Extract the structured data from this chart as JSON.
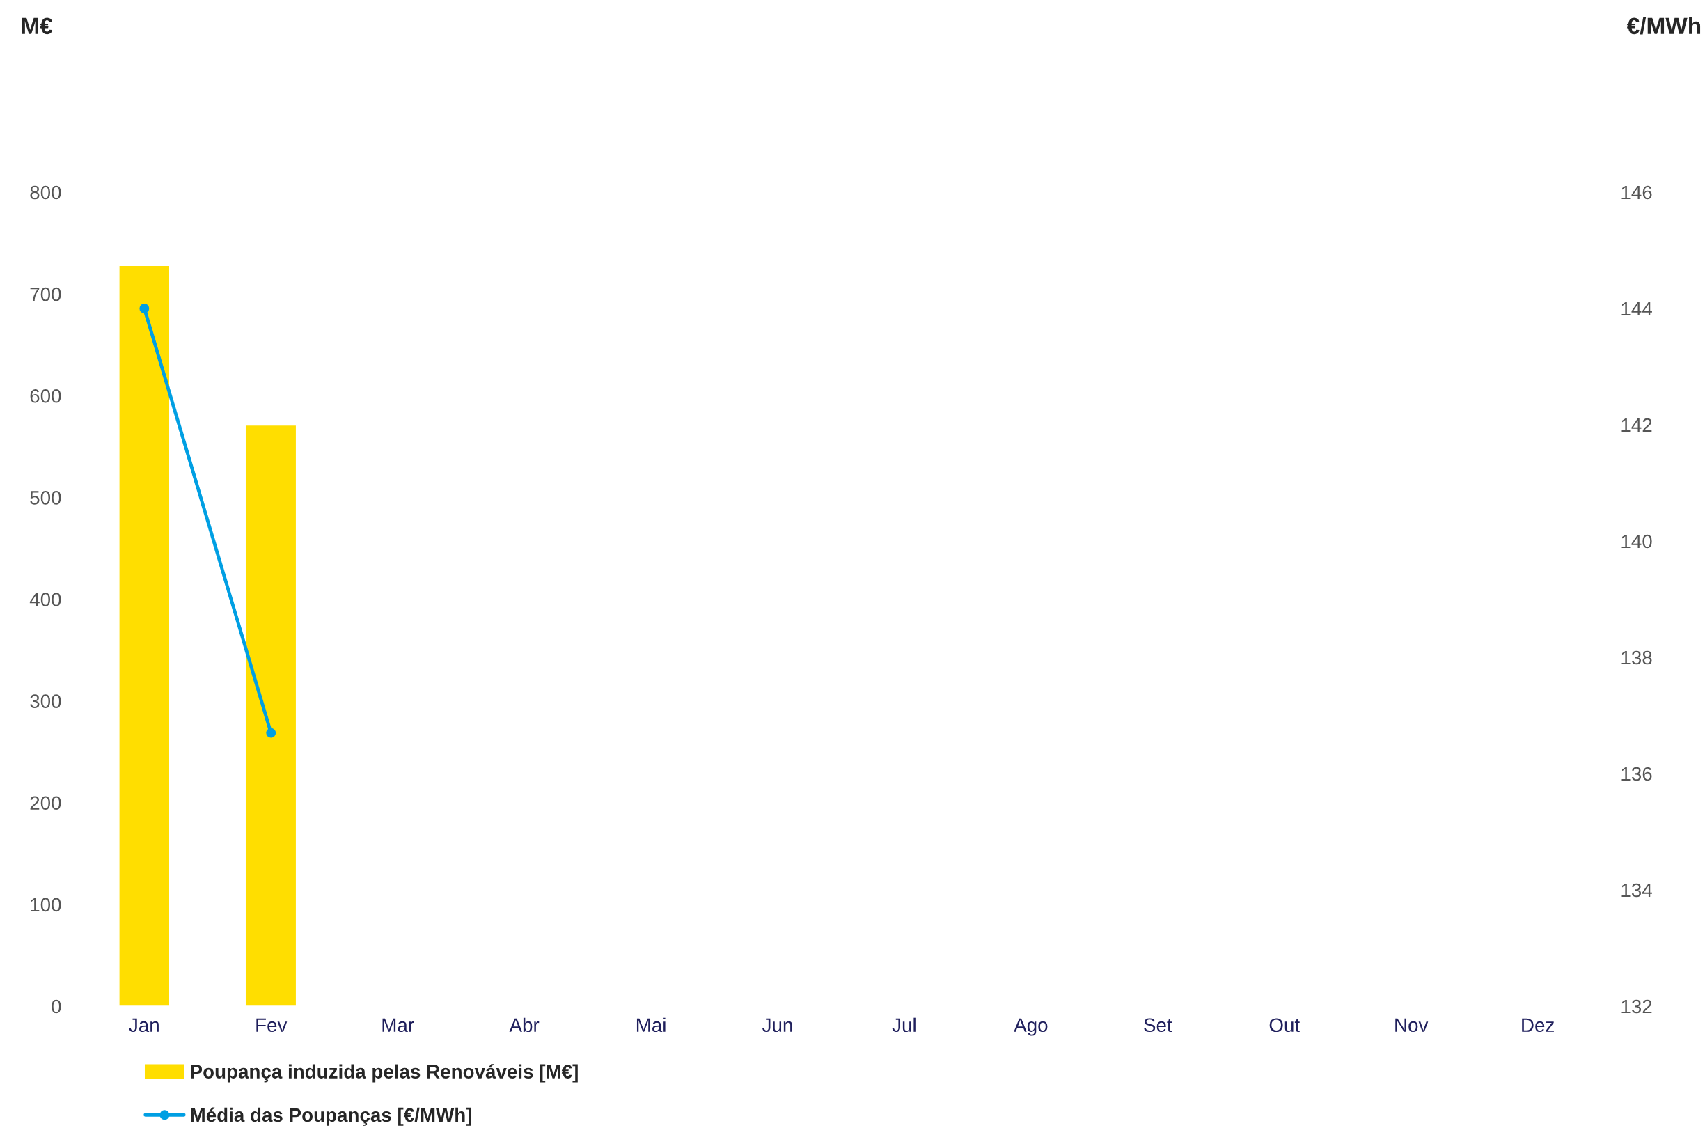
{
  "chart_data": {
    "type": "bar",
    "annotations": [
      "M€",
      "€/MWh"
    ],
    "categories": [
      "Jan",
      "Fev",
      "Mar",
      "Abr",
      "Mai",
      "Jun",
      "Jul",
      "Ago",
      "Set",
      "Out",
      "Nov",
      "Dez"
    ],
    "series": [
      {
        "name": "Poupança induzida pelas Renováveis [M€]",
        "color": "#ffde00",
        "values": [
          728,
          571,
          null,
          null,
          null,
          null,
          null,
          null,
          null,
          null,
          null,
          null
        ]
      },
      {
        "name": "Média das Poupanças [€/MWh]",
        "type": "line",
        "axis": "y2",
        "color": "#009fe3",
        "marker": "circle",
        "values": [
          144.0,
          136.7,
          null,
          null,
          null,
          null,
          null,
          null,
          null,
          null,
          null,
          null
        ]
      }
    ],
    "ylim": [
      0,
      800
    ],
    "yticks": [
      0,
      100,
      200,
      300,
      400,
      500,
      600,
      700,
      800
    ],
    "y2lim": [
      132,
      146
    ],
    "y2ticks": [
      132,
      134,
      136,
      138,
      140,
      142,
      144,
      146
    ],
    "grid": false,
    "legend": "bottom left"
  }
}
